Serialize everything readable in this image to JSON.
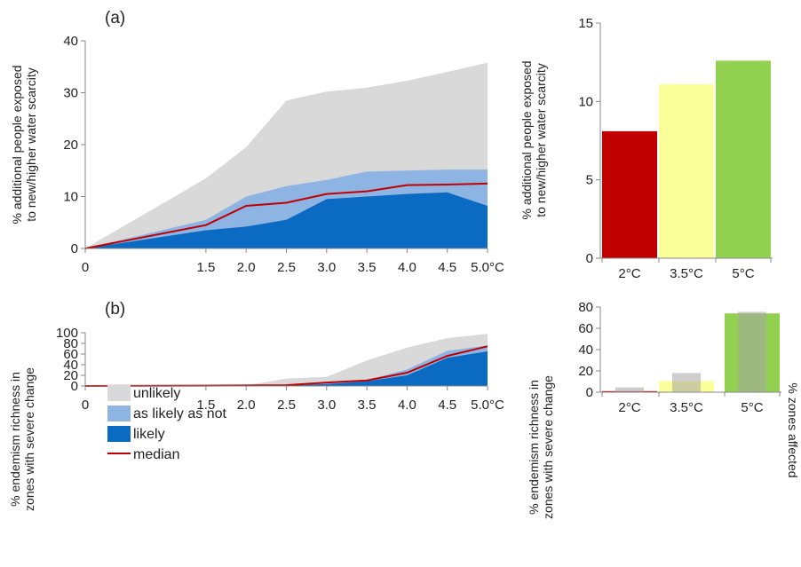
{
  "colors": {
    "unlikely": "#d9d9d9",
    "as_likely_as_not": "#8db4e2",
    "likely": "#0b6ac2",
    "median": "#c00000",
    "bar_2C": "#c00000",
    "bar_3_5C": "#fbff99",
    "bar_5C": "#92d050",
    "overlay_gray": "#a6a6a6"
  },
  "panels": {
    "a_label": "(a)",
    "b_label": "(b)"
  },
  "legend": {
    "unlikely": "unlikely",
    "as_likely_as_not": "as likely as not",
    "likely": "likely",
    "median": "median"
  },
  "chart_data": [
    {
      "id": "a-area",
      "type": "area",
      "ylabel_line1": "% additional people exposed",
      "ylabel_line2": "to new/higher water scarcity",
      "ylim": [
        0,
        40
      ],
      "yticks": [
        "0",
        "10",
        "20",
        "30",
        "40"
      ],
      "x": [
        0,
        1.5,
        2.0,
        2.5,
        3.0,
        3.5,
        4.0,
        4.5,
        5.0
      ],
      "xticks": [
        "0",
        "1.5",
        "2.0",
        "2.5",
        "3.0",
        "3.5",
        "4.0",
        "4.5",
        "5.0°C"
      ],
      "series": [
        {
          "name": "unlikely",
          "values": [
            0,
            13.5,
            19.5,
            28.5,
            30.2,
            31,
            32.3,
            34,
            35.8
          ]
        },
        {
          "name": "as likely as not",
          "values": [
            0,
            5.5,
            10,
            12,
            13.2,
            14.8,
            15,
            15.2,
            15.2
          ]
        },
        {
          "name": "likely",
          "values": [
            0,
            3.5,
            4.2,
            5.5,
            9.5,
            10,
            10.5,
            10.8,
            8.2
          ]
        },
        {
          "name": "median",
          "values": [
            0,
            4.5,
            8.2,
            8.8,
            10.5,
            11,
            12.2,
            12.3,
            12.5
          ]
        }
      ]
    },
    {
      "id": "a-bar",
      "type": "bar",
      "ylabel_line1": "% additional people exposed",
      "ylabel_line2": "to new/higher water scarcity",
      "ylim": [
        0,
        15
      ],
      "yticks": [
        "0",
        "5",
        "10",
        "15"
      ],
      "categories": [
        "2°C",
        "3.5°C",
        "5°C"
      ],
      "values": [
        8.1,
        11.1,
        12.6
      ]
    },
    {
      "id": "b-area",
      "type": "area",
      "ylabel_line1": "% endemism richness in",
      "ylabel_line2": "zones with severe change",
      "ylim": [
        0,
        100
      ],
      "yticks": [
        "0",
        "20",
        "40",
        "60",
        "80",
        "100"
      ],
      "x": [
        0,
        1.5,
        2.0,
        2.5,
        3.0,
        3.5,
        4.0,
        4.5,
        5.0
      ],
      "xticks": [
        "0",
        "1.5",
        "2.0",
        "2.5",
        "3.0",
        "3.5",
        "4.0",
        "4.5",
        "5.0°C"
      ],
      "series": [
        {
          "name": "unlikely",
          "values": [
            0,
            0.5,
            1,
            14,
            17,
            48,
            72,
            90,
            98
          ]
        },
        {
          "name": "as likely as not",
          "values": [
            0,
            0.5,
            1,
            2,
            5.5,
            11,
            31,
            66,
            76
          ]
        },
        {
          "name": "likely",
          "values": [
            0,
            0.5,
            0.8,
            1,
            3.5,
            9,
            20,
            53,
            65
          ]
        },
        {
          "name": "median",
          "values": [
            0,
            0.7,
            1,
            1.5,
            6.5,
            10.5,
            25,
            56.5,
            74.5
          ]
        }
      ]
    },
    {
      "id": "b-bar",
      "type": "bar",
      "ylabel_line1": "% endemism richness in",
      "ylabel_line2": "zones with severe change",
      "ylabel_right": "% zones affected",
      "ylim": [
        0,
        80
      ],
      "yticks": [
        "0",
        "20",
        "40",
        "60",
        "80"
      ],
      "categories": [
        "2°C",
        "3.5°C",
        "5°C"
      ],
      "values": [
        1,
        10.5,
        74
      ],
      "zones_affected": [
        4.5,
        18,
        75.5
      ]
    }
  ]
}
